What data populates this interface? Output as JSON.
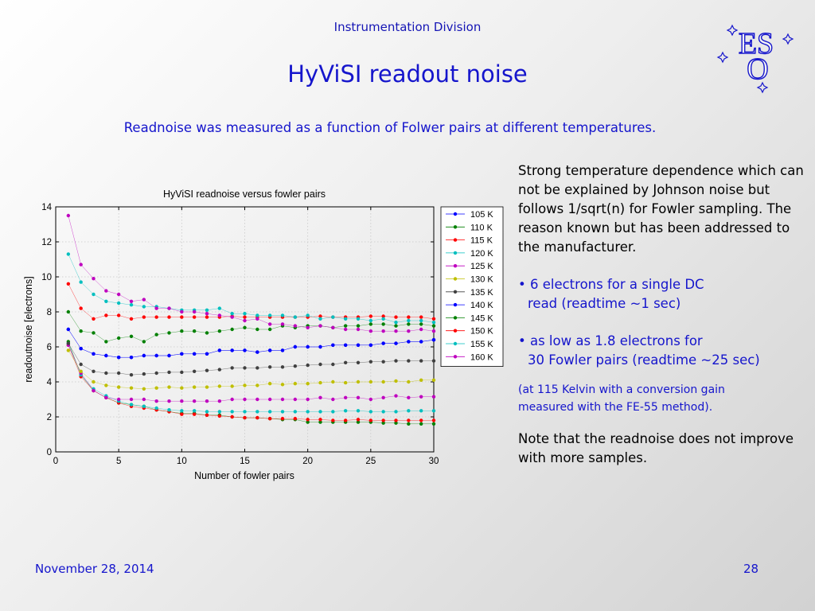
{
  "header": {
    "division": "Instrumentation Division",
    "title": "HyViSI readout noise",
    "subtitle": "Readnoise was measured as a function of Folwer pairs at different temperatures."
  },
  "logo": {
    "text_top": "ES",
    "text_bottom": "O",
    "icon": "eso-logo-stars"
  },
  "notes": {
    "p1": "Strong temperature dependence which can not be explained by Johnson noise but follows 1/sqrt(n) for Fowler sampling. The reason known but has been addressed to the manufacturer.",
    "b1_line1": "• 6 electrons for a single DC",
    "b1_line2": "read (readtime ~1 sec)",
    "b2_line1": "• as low as 1.8 electrons for",
    "b2_line2": "30 Fowler pairs (readtime ~25 sec)",
    "small_line1": "(at 115 Kelvin with a conversion gain",
    "small_line2": "measured with the FE-55 method).",
    "p_last": "Note that the readnoise does not improve with more samples."
  },
  "footer": {
    "date": "November 28, 2014",
    "page": "28"
  },
  "colors": {
    "accent": "#1515cc",
    "text": "#000000",
    "grid": "#bbbbbb"
  },
  "chart_data": {
    "type": "line",
    "title": "HyViSI readnoise versus fowler pairs",
    "xlabel": "Number of fowler pairs",
    "ylabel": "readoutnoise [electrons]",
    "xlim": [
      0,
      30
    ],
    "ylim": [
      0,
      14
    ],
    "xticks": [
      0,
      5,
      10,
      15,
      20,
      25,
      30
    ],
    "yticks": [
      0,
      2,
      4,
      6,
      8,
      10,
      12,
      14
    ],
    "grid": true,
    "legend_position": "top-right",
    "x": [
      1,
      2,
      3,
      4,
      5,
      6,
      7,
      8,
      9,
      10,
      11,
      12,
      13,
      14,
      15,
      16,
      17,
      18,
      19,
      20,
      21,
      22,
      23,
      24,
      25,
      26,
      27,
      28,
      29,
      30
    ],
    "series": [
      {
        "name": "105 K",
        "color": "#0000ff",
        "values": [
          7.0,
          5.9,
          5.6,
          5.5,
          5.4,
          5.4,
          5.5,
          5.5,
          5.5,
          5.6,
          5.6,
          5.6,
          5.8,
          5.8,
          5.8,
          5.7,
          5.8,
          5.8,
          6.0,
          6.0,
          6.0,
          6.1,
          6.1,
          6.1,
          6.1,
          6.2,
          6.2,
          6.3,
          6.3,
          6.4
        ]
      },
      {
        "name": "110 K",
        "color": "#008000",
        "values": [
          6.3,
          4.4,
          3.5,
          3.1,
          2.8,
          2.7,
          2.6,
          2.4,
          2.3,
          2.2,
          2.2,
          2.1,
          2.1,
          2.0,
          1.95,
          1.95,
          1.9,
          1.85,
          1.85,
          1.7,
          1.7,
          1.7,
          1.7,
          1.7,
          1.7,
          1.65,
          1.65,
          1.6,
          1.6,
          1.6
        ]
      },
      {
        "name": "115 K",
        "color": "#ff0000",
        "values": [
          6.1,
          4.3,
          3.5,
          3.1,
          2.8,
          2.6,
          2.5,
          2.4,
          2.3,
          2.15,
          2.15,
          2.1,
          2.05,
          2.0,
          1.95,
          1.95,
          1.9,
          1.9,
          1.9,
          1.85,
          1.85,
          1.8,
          1.8,
          1.85,
          1.8,
          1.8,
          1.8,
          1.8,
          1.8,
          1.8
        ]
      },
      {
        "name": "120 K",
        "color": "#00bfbf",
        "values": [
          6.2,
          4.4,
          3.6,
          3.2,
          2.9,
          2.7,
          2.6,
          2.5,
          2.4,
          2.35,
          2.35,
          2.3,
          2.3,
          2.3,
          2.3,
          2.3,
          2.3,
          2.3,
          2.3,
          2.3,
          2.3,
          2.3,
          2.35,
          2.35,
          2.3,
          2.3,
          2.3,
          2.35,
          2.35,
          2.35
        ]
      },
      {
        "name": "125 K",
        "color": "#bf00bf",
        "values": [
          6.1,
          4.5,
          3.5,
          3.1,
          3.0,
          3.0,
          3.0,
          2.9,
          2.9,
          2.9,
          2.9,
          2.9,
          2.9,
          3.0,
          3.0,
          3.0,
          3.0,
          3.0,
          3.0,
          3.0,
          3.1,
          3.0,
          3.1,
          3.1,
          3.0,
          3.1,
          3.2,
          3.1,
          3.15,
          3.15
        ]
      },
      {
        "name": "130 K",
        "color": "#bfbf00",
        "values": [
          5.8,
          4.6,
          4.0,
          3.8,
          3.7,
          3.65,
          3.6,
          3.65,
          3.7,
          3.65,
          3.7,
          3.7,
          3.75,
          3.75,
          3.8,
          3.8,
          3.9,
          3.85,
          3.9,
          3.9,
          3.95,
          4.0,
          3.95,
          4.0,
          4.0,
          4.0,
          4.05,
          4.0,
          4.1,
          4.1
        ]
      },
      {
        "name": "135 K",
        "color": "#404040",
        "values": [
          6.2,
          5.0,
          4.6,
          4.5,
          4.5,
          4.4,
          4.45,
          4.5,
          4.55,
          4.55,
          4.6,
          4.65,
          4.7,
          4.8,
          4.8,
          4.8,
          4.85,
          4.85,
          4.9,
          4.95,
          5.0,
          5.0,
          5.1,
          5.1,
          5.15,
          5.15,
          5.2,
          5.2,
          5.2,
          5.2
        ]
      },
      {
        "name": "140 K",
        "color": "#0000ff",
        "values": [
          7.0,
          5.9,
          5.6,
          5.5,
          5.4,
          5.4,
          5.5,
          5.5,
          5.5,
          5.6,
          5.6,
          5.6,
          5.8,
          5.8,
          5.8,
          5.7,
          5.8,
          5.8,
          6.0,
          6.0,
          6.0,
          6.1,
          6.1,
          6.1,
          6.1,
          6.2,
          6.2,
          6.3,
          6.3,
          6.4
        ]
      },
      {
        "name": "145 K",
        "color": "#008000",
        "values": [
          8.0,
          6.9,
          6.8,
          6.3,
          6.5,
          6.6,
          6.3,
          6.7,
          6.8,
          6.9,
          6.9,
          6.8,
          6.9,
          7.0,
          7.1,
          7.0,
          7.0,
          7.2,
          7.1,
          7.2,
          7.2,
          7.1,
          7.2,
          7.2,
          7.3,
          7.3,
          7.2,
          7.3,
          7.3,
          7.2
        ]
      },
      {
        "name": "150 K",
        "color": "#ff0000",
        "values": [
          9.6,
          8.2,
          7.6,
          7.8,
          7.8,
          7.6,
          7.7,
          7.7,
          7.7,
          7.7,
          7.7,
          7.7,
          7.7,
          7.75,
          7.7,
          7.7,
          7.7,
          7.7,
          7.7,
          7.7,
          7.75,
          7.7,
          7.7,
          7.7,
          7.75,
          7.75,
          7.7,
          7.7,
          7.7,
          7.6
        ]
      },
      {
        "name": "155 K",
        "color": "#00bfbf",
        "values": [
          11.3,
          9.7,
          9.0,
          8.6,
          8.5,
          8.4,
          8.3,
          8.3,
          8.2,
          8.1,
          8.1,
          8.1,
          8.2,
          7.9,
          7.9,
          7.8,
          7.8,
          7.8,
          7.7,
          7.8,
          7.6,
          7.7,
          7.6,
          7.6,
          7.5,
          7.6,
          7.4,
          7.5,
          7.5,
          7.4
        ]
      },
      {
        "name": "160 K",
        "color": "#bf00bf",
        "values": [
          13.5,
          10.7,
          9.9,
          9.2,
          9.0,
          8.6,
          8.7,
          8.2,
          8.2,
          8.0,
          8.0,
          7.9,
          7.8,
          7.7,
          7.5,
          7.6,
          7.3,
          7.3,
          7.2,
          7.1,
          7.2,
          7.1,
          7.0,
          7.0,
          6.9,
          6.9,
          6.9,
          6.9,
          7.0,
          6.9
        ]
      }
    ]
  }
}
